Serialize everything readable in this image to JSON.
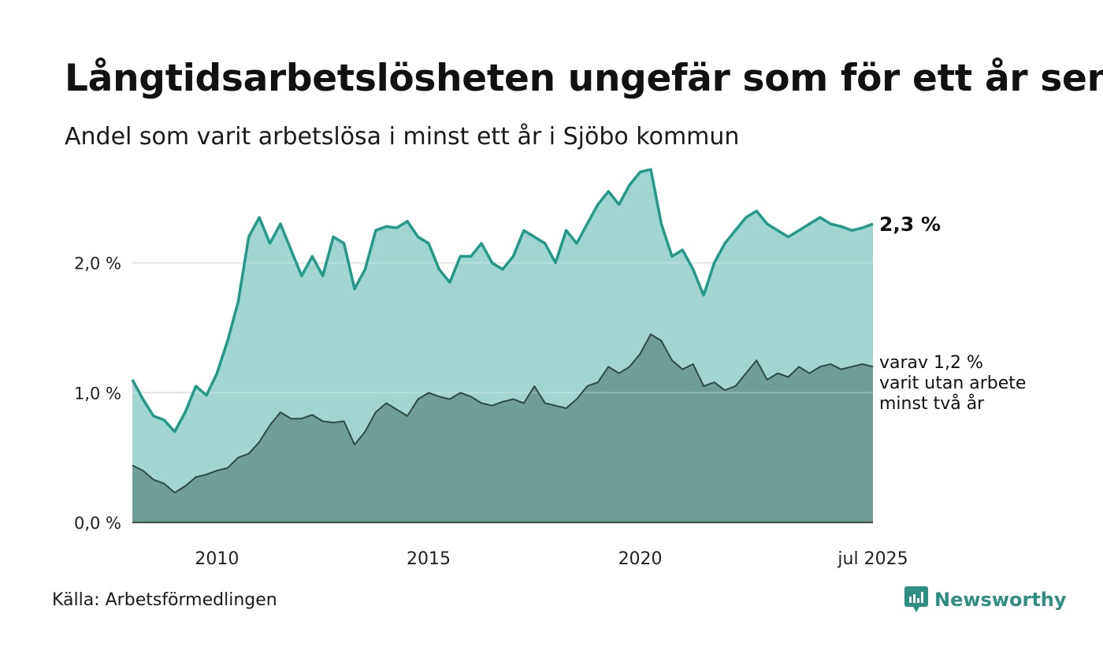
{
  "header": {
    "title": "Långtidsarbetslösheten ungefär som för ett år sen",
    "subtitle": "Andel som varit arbetslösa i minst ett år i Sjöbo kommun"
  },
  "footer": {
    "source": "Källa: Arbetsförmedlingen",
    "brand": "Newsworthy",
    "brand_icon": "newsworthy-logo-icon"
  },
  "colors": {
    "area_total": "#a2d5cf",
    "line_total": "#23998a",
    "area_two_year": "#6f9e97",
    "line_two_year": "#2f4a46",
    "grid": "#dddddd",
    "brand": "#2f8f83"
  },
  "chart_data": {
    "type": "area",
    "x_start": "2008-01",
    "x_end": "2025-07",
    "x_ticks": [
      {
        "date": "2010-01",
        "label": "2010"
      },
      {
        "date": "2015-01",
        "label": "2015"
      },
      {
        "date": "2020-01",
        "label": "2020"
      },
      {
        "date": "2025-07",
        "label": "jul 2025"
      }
    ],
    "y_ticks": [
      {
        "value": 0,
        "label": "0,0 %"
      },
      {
        "value": 1,
        "label": "1,0 %"
      },
      {
        "value": 2,
        "label": "2,0 %"
      }
    ],
    "ylim": [
      0,
      2.75
    ],
    "grid": "horizontal",
    "series": [
      {
        "key": "total",
        "end_label": "2,3 %",
        "points": [
          [
            "2008-01",
            1.1
          ],
          [
            "2008-04",
            0.95
          ],
          [
            "2008-07",
            0.82
          ],
          [
            "2008-10",
            0.79
          ],
          [
            "2009-01",
            0.7
          ],
          [
            "2009-04",
            0.85
          ],
          [
            "2009-07",
            1.05
          ],
          [
            "2009-10",
            0.98
          ],
          [
            "2010-01",
            1.15
          ],
          [
            "2010-04",
            1.4
          ],
          [
            "2010-07",
            1.7
          ],
          [
            "2010-10",
            2.2
          ],
          [
            "2011-01",
            2.35
          ],
          [
            "2011-04",
            2.15
          ],
          [
            "2011-07",
            2.3
          ],
          [
            "2011-10",
            2.1
          ],
          [
            "2012-01",
            1.9
          ],
          [
            "2012-04",
            2.05
          ],
          [
            "2012-07",
            1.9
          ],
          [
            "2012-10",
            2.2
          ],
          [
            "2013-01",
            2.15
          ],
          [
            "2013-04",
            1.8
          ],
          [
            "2013-07",
            1.95
          ],
          [
            "2013-10",
            2.25
          ],
          [
            "2014-01",
            2.28
          ],
          [
            "2014-04",
            2.27
          ],
          [
            "2014-07",
            2.32
          ],
          [
            "2014-10",
            2.2
          ],
          [
            "2015-01",
            2.15
          ],
          [
            "2015-04",
            1.95
          ],
          [
            "2015-07",
            1.85
          ],
          [
            "2015-10",
            2.05
          ],
          [
            "2016-01",
            2.05
          ],
          [
            "2016-04",
            2.15
          ],
          [
            "2016-07",
            2.0
          ],
          [
            "2016-10",
            1.95
          ],
          [
            "2017-01",
            2.05
          ],
          [
            "2017-04",
            2.25
          ],
          [
            "2017-07",
            2.2
          ],
          [
            "2017-10",
            2.15
          ],
          [
            "2018-01",
            2.0
          ],
          [
            "2018-04",
            2.25
          ],
          [
            "2018-07",
            2.15
          ],
          [
            "2018-10",
            2.3
          ],
          [
            "2019-01",
            2.45
          ],
          [
            "2019-04",
            2.55
          ],
          [
            "2019-07",
            2.45
          ],
          [
            "2019-10",
            2.6
          ],
          [
            "2020-01",
            2.7
          ],
          [
            "2020-04",
            2.72
          ],
          [
            "2020-07",
            2.3
          ],
          [
            "2020-10",
            2.05
          ],
          [
            "2021-01",
            2.1
          ],
          [
            "2021-04",
            1.95
          ],
          [
            "2021-07",
            1.75
          ],
          [
            "2021-10",
            2.0
          ],
          [
            "2022-01",
            2.15
          ],
          [
            "2022-04",
            2.25
          ],
          [
            "2022-07",
            2.35
          ],
          [
            "2022-10",
            2.4
          ],
          [
            "2023-01",
            2.3
          ],
          [
            "2023-04",
            2.25
          ],
          [
            "2023-07",
            2.2
          ],
          [
            "2023-10",
            2.25
          ],
          [
            "2024-01",
            2.3
          ],
          [
            "2024-04",
            2.35
          ],
          [
            "2024-07",
            2.3
          ],
          [
            "2024-10",
            2.28
          ],
          [
            "2025-01",
            2.25
          ],
          [
            "2025-04",
            2.27
          ],
          [
            "2025-07",
            2.3
          ]
        ]
      },
      {
        "key": "two_year",
        "end_label_lines": [
          "varav 1,2 %",
          "varit utan arbete",
          "minst två år"
        ],
        "points": [
          [
            "2008-01",
            0.44
          ],
          [
            "2008-04",
            0.4
          ],
          [
            "2008-07",
            0.33
          ],
          [
            "2008-10",
            0.3
          ],
          [
            "2009-01",
            0.23
          ],
          [
            "2009-04",
            0.28
          ],
          [
            "2009-07",
            0.35
          ],
          [
            "2009-10",
            0.37
          ],
          [
            "2010-01",
            0.4
          ],
          [
            "2010-04",
            0.42
          ],
          [
            "2010-07",
            0.5
          ],
          [
            "2010-10",
            0.53
          ],
          [
            "2011-01",
            0.62
          ],
          [
            "2011-04",
            0.75
          ],
          [
            "2011-07",
            0.85
          ],
          [
            "2011-10",
            0.8
          ],
          [
            "2012-01",
            0.8
          ],
          [
            "2012-04",
            0.83
          ],
          [
            "2012-07",
            0.78
          ],
          [
            "2012-10",
            0.77
          ],
          [
            "2013-01",
            0.78
          ],
          [
            "2013-04",
            0.6
          ],
          [
            "2013-07",
            0.7
          ],
          [
            "2013-10",
            0.85
          ],
          [
            "2014-01",
            0.92
          ],
          [
            "2014-04",
            0.87
          ],
          [
            "2014-07",
            0.82
          ],
          [
            "2014-10",
            0.95
          ],
          [
            "2015-01",
            1.0
          ],
          [
            "2015-04",
            0.97
          ],
          [
            "2015-07",
            0.95
          ],
          [
            "2015-10",
            1.0
          ],
          [
            "2016-01",
            0.97
          ],
          [
            "2016-04",
            0.92
          ],
          [
            "2016-07",
            0.9
          ],
          [
            "2016-10",
            0.93
          ],
          [
            "2017-01",
            0.95
          ],
          [
            "2017-04",
            0.92
          ],
          [
            "2017-07",
            1.05
          ],
          [
            "2017-10",
            0.92
          ],
          [
            "2018-01",
            0.9
          ],
          [
            "2018-04",
            0.88
          ],
          [
            "2018-07",
            0.95
          ],
          [
            "2018-10",
            1.05
          ],
          [
            "2019-01",
            1.08
          ],
          [
            "2019-04",
            1.2
          ],
          [
            "2019-07",
            1.15
          ],
          [
            "2019-10",
            1.2
          ],
          [
            "2020-01",
            1.3
          ],
          [
            "2020-04",
            1.45
          ],
          [
            "2020-07",
            1.4
          ],
          [
            "2020-10",
            1.25
          ],
          [
            "2021-01",
            1.18
          ],
          [
            "2021-04",
            1.22
          ],
          [
            "2021-07",
            1.05
          ],
          [
            "2021-10",
            1.08
          ],
          [
            "2022-01",
            1.02
          ],
          [
            "2022-04",
            1.05
          ],
          [
            "2022-07",
            1.15
          ],
          [
            "2022-10",
            1.25
          ],
          [
            "2023-01",
            1.1
          ],
          [
            "2023-04",
            1.15
          ],
          [
            "2023-07",
            1.12
          ],
          [
            "2023-10",
            1.2
          ],
          [
            "2024-01",
            1.15
          ],
          [
            "2024-04",
            1.2
          ],
          [
            "2024-07",
            1.22
          ],
          [
            "2024-10",
            1.18
          ],
          [
            "2025-01",
            1.2
          ],
          [
            "2025-04",
            1.22
          ],
          [
            "2025-07",
            1.2
          ]
        ]
      }
    ]
  }
}
